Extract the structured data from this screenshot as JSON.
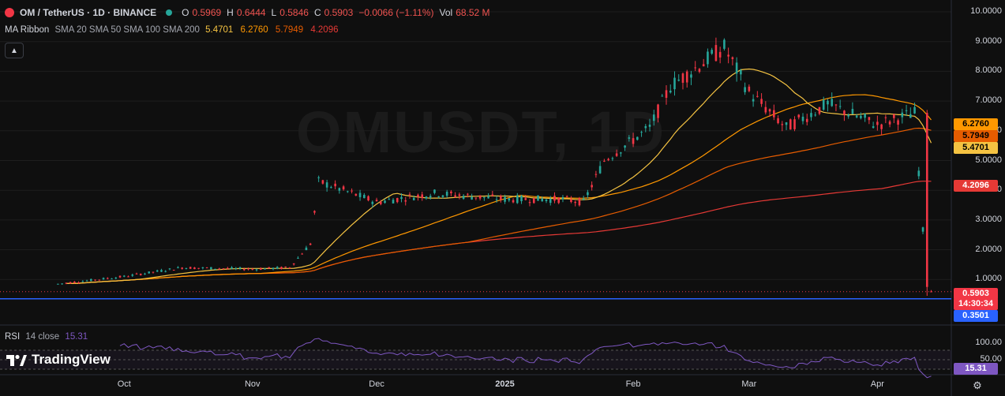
{
  "header": {
    "symbol": "OM / TetherUS · 1D · BINANCE",
    "open_label": "O",
    "open_value": "0.5969",
    "high_label": "H",
    "high_value": "0.6444",
    "low_label": "L",
    "low_value": "0.5846",
    "close_label": "C",
    "close_value": "0.5903",
    "change": "−0.0066 (−1.11%)",
    "vol_label": "Vol",
    "vol_value": "68.52 M",
    "status_color": "#26a69a"
  },
  "indicator": {
    "name": "MA Ribbon",
    "params": "SMA 20 SMA 50 SMA 100 SMA 200",
    "values": [
      "5.4701",
      "6.2760",
      "5.7949",
      "4.2096"
    ],
    "colors": [
      "#f5c342",
      "#ff9800",
      "#e65c00",
      "#e53935"
    ]
  },
  "watermark": "OMUSDT, 1D",
  "rsi": {
    "name": "RSI",
    "params": "14 close",
    "value": "15.31"
  },
  "brand": {
    "name": "TradingView"
  },
  "price_axis": {
    "ticks": [
      "10.0000",
      "9.0000",
      "8.0000",
      "7.0000",
      "6.0000",
      "5.0000",
      "4.0000",
      "3.0000",
      "2.0000",
      "1.0000"
    ],
    "tags": {
      "sma50": {
        "value": "6.2760",
        "bg": "#ff9800",
        "fg": "#000000"
      },
      "sma100": {
        "value": "5.7949",
        "bg": "#e65c00",
        "fg": "#000000"
      },
      "sma20": {
        "value": "5.4701",
        "bg": "#f5c342",
        "fg": "#000000"
      },
      "sma200": {
        "value": "4.2096",
        "bg": "#e53935",
        "fg": "#ffffff"
      },
      "last_price": {
        "value": "0.5903",
        "bg": "#f23645",
        "fg": "#ffffff"
      },
      "countdown": {
        "value": "14:30:34",
        "bg": "#f23645",
        "fg": "#ffffff"
      },
      "hline": {
        "value": "0.3501",
        "bg": "#2962ff",
        "fg": "#ffffff"
      }
    }
  },
  "rsi_axis": {
    "ticks": [
      "100.00",
      "50.00"
    ],
    "value_tag": "15.31",
    "value_bg": "#7e57c2"
  },
  "time_axis": [
    "Oct",
    "Nov",
    "Dec",
    "2025",
    "Feb",
    "Mar",
    "Apr"
  ],
  "colors": {
    "up": "#26a69a",
    "down": "#f23645",
    "hline": "#2962ff",
    "rsi": "#7e57c2",
    "background": "#0f0f0f"
  },
  "chart_data": {
    "type": "candlestick",
    "title": "OM / TetherUS · 1D · BINANCE",
    "series": [
      {
        "name": "SMA 20",
        "last": 5.4701
      },
      {
        "name": "SMA 50",
        "last": 6.276
      },
      {
        "name": "SMA 100",
        "last": 5.7949
      },
      {
        "name": "SMA 200",
        "last": 4.2096
      }
    ],
    "ylim": [
      0,
      10
    ],
    "hline": 0.3501,
    "x_labels": [
      "Oct",
      "Nov",
      "Dec",
      "2025",
      "Feb",
      "Mar",
      "Apr"
    ],
    "price_path": [
      {
        "date": "2024-09-15",
        "close": 0.85
      },
      {
        "date": "2024-10-01",
        "close": 1.1
      },
      {
        "date": "2024-10-15",
        "close": 1.4
      },
      {
        "date": "2024-11-01",
        "close": 1.35
      },
      {
        "date": "2024-11-10",
        "close": 1.4
      },
      {
        "date": "2024-11-15",
        "close": 2.2
      },
      {
        "date": "2024-11-17",
        "close": 4.3
      },
      {
        "date": "2024-12-01",
        "close": 3.6
      },
      {
        "date": "2024-12-15",
        "close": 3.9
      },
      {
        "date": "2025-01-01",
        "close": 3.7
      },
      {
        "date": "2025-01-15",
        "close": 3.7
      },
      {
        "date": "2025-01-20",
        "close": 3.6
      },
      {
        "date": "2025-01-25",
        "close": 5.0
      },
      {
        "date": "2025-02-05",
        "close": 6.1
      },
      {
        "date": "2025-02-10",
        "close": 7.5
      },
      {
        "date": "2025-02-23",
        "close": 8.8
      },
      {
        "date": "2025-03-01",
        "close": 7.3
      },
      {
        "date": "2025-03-10",
        "close": 6.1
      },
      {
        "date": "2025-03-20",
        "close": 6.9
      },
      {
        "date": "2025-04-01",
        "close": 6.2
      },
      {
        "date": "2025-04-10",
        "close": 6.6
      },
      {
        "date": "2025-04-13",
        "close": 0.7
      },
      {
        "date": "2025-04-14",
        "close": 0.5903
      }
    ],
    "rsi_last": 15.31
  }
}
